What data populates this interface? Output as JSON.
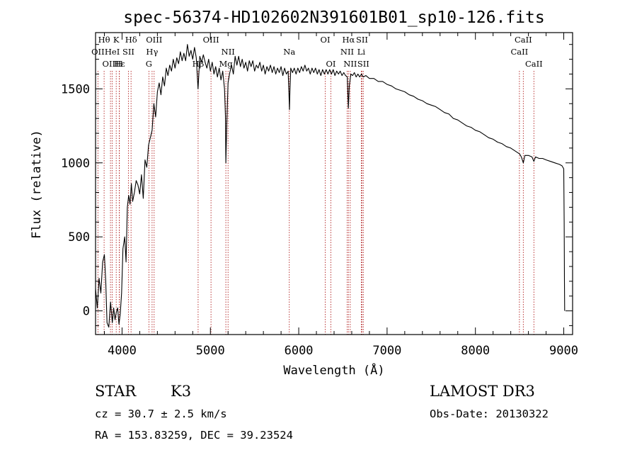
{
  "chart_data": {
    "type": "line",
    "title": "spec-56374-HD102602N391601B01_sp10-126.fits",
    "xlabel": "Wavelength (Å)",
    "ylabel": "Flux (relative)",
    "xlim": [
      3700,
      9100
    ],
    "ylim": [
      -160,
      1880
    ],
    "x_ticks": [
      4000,
      5000,
      6000,
      7000,
      8000,
      9000
    ],
    "y_ticks": [
      0,
      500,
      1000,
      1500
    ],
    "grid": false,
    "series": [
      {
        "color": "#000000",
        "points": [
          [
            3700,
            150
          ],
          [
            3720,
            20
          ],
          [
            3740,
            220
          ],
          [
            3760,
            120
          ],
          [
            3780,
            330
          ],
          [
            3800,
            380
          ],
          [
            3815,
            200
          ],
          [
            3830,
            -80
          ],
          [
            3850,
            -110
          ],
          [
            3870,
            60
          ],
          [
            3890,
            -80
          ],
          [
            3905,
            20
          ],
          [
            3920,
            -60
          ],
          [
            3935,
            -10
          ],
          [
            3950,
            20
          ],
          [
            3965,
            -90
          ],
          [
            3980,
            -20
          ],
          [
            3995,
            120
          ],
          [
            4010,
            420
          ],
          [
            4030,
            500
          ],
          [
            4045,
            330
          ],
          [
            4060,
            700
          ],
          [
            4075,
            780
          ],
          [
            4090,
            720
          ],
          [
            4105,
            860
          ],
          [
            4120,
            740
          ],
          [
            4140,
            800
          ],
          [
            4160,
            880
          ],
          [
            4180,
            850
          ],
          [
            4200,
            790
          ],
          [
            4220,
            920
          ],
          [
            4240,
            760
          ],
          [
            4260,
            1020
          ],
          [
            4280,
            970
          ],
          [
            4300,
            1120
          ],
          [
            4320,
            1170
          ],
          [
            4340,
            1220
          ],
          [
            4360,
            1400
          ],
          [
            4380,
            1310
          ],
          [
            4400,
            1480
          ],
          [
            4420,
            1540
          ],
          [
            4440,
            1460
          ],
          [
            4460,
            1580
          ],
          [
            4480,
            1520
          ],
          [
            4500,
            1640
          ],
          [
            4520,
            1590
          ],
          [
            4540,
            1660
          ],
          [
            4560,
            1620
          ],
          [
            4580,
            1700
          ],
          [
            4600,
            1640
          ],
          [
            4620,
            1710
          ],
          [
            4640,
            1670
          ],
          [
            4660,
            1750
          ],
          [
            4680,
            1690
          ],
          [
            4700,
            1740
          ],
          [
            4720,
            1690
          ],
          [
            4740,
            1800
          ],
          [
            4760,
            1720
          ],
          [
            4780,
            1760
          ],
          [
            4800,
            1700
          ],
          [
            4820,
            1780
          ],
          [
            4840,
            1710
          ],
          [
            4860,
            1500
          ],
          [
            4880,
            1720
          ],
          [
            4900,
            1680
          ],
          [
            4920,
            1730
          ],
          [
            4940,
            1680
          ],
          [
            4960,
            1640
          ],
          [
            4980,
            1700
          ],
          [
            5000,
            1620
          ],
          [
            5020,
            1680
          ],
          [
            5040,
            1600
          ],
          [
            5060,
            1650
          ],
          [
            5080,
            1580
          ],
          [
            5100,
            1640
          ],
          [
            5120,
            1560
          ],
          [
            5140,
            1620
          ],
          [
            5160,
            1500
          ],
          [
            5170,
            1320
          ],
          [
            5175,
            1000
          ],
          [
            5185,
            1260
          ],
          [
            5200,
            1540
          ],
          [
            5220,
            1610
          ],
          [
            5240,
            1660
          ],
          [
            5260,
            1600
          ],
          [
            5280,
            1720
          ],
          [
            5300,
            1660
          ],
          [
            5320,
            1720
          ],
          [
            5340,
            1650
          ],
          [
            5360,
            1700
          ],
          [
            5380,
            1640
          ],
          [
            5400,
            1680
          ],
          [
            5420,
            1620
          ],
          [
            5440,
            1690
          ],
          [
            5460,
            1650
          ],
          [
            5480,
            1690
          ],
          [
            5500,
            1620
          ],
          [
            5520,
            1660
          ],
          [
            5540,
            1640
          ],
          [
            5560,
            1680
          ],
          [
            5580,
            1620
          ],
          [
            5600,
            1660
          ],
          [
            5620,
            1600
          ],
          [
            5640,
            1650
          ],
          [
            5660,
            1620
          ],
          [
            5680,
            1660
          ],
          [
            5700,
            1610
          ],
          [
            5720,
            1650
          ],
          [
            5740,
            1600
          ],
          [
            5760,
            1640
          ],
          [
            5780,
            1610
          ],
          [
            5800,
            1650
          ],
          [
            5820,
            1590
          ],
          [
            5840,
            1640
          ],
          [
            5860,
            1600
          ],
          [
            5880,
            1620
          ],
          [
            5890,
            1460
          ],
          [
            5895,
            1360
          ],
          [
            5900,
            1480
          ],
          [
            5910,
            1640
          ],
          [
            5930,
            1610
          ],
          [
            5950,
            1640
          ],
          [
            5970,
            1600
          ],
          [
            5990,
            1640
          ],
          [
            6010,
            1610
          ],
          [
            6030,
            1650
          ],
          [
            6050,
            1620
          ],
          [
            6070,
            1660
          ],
          [
            6090,
            1620
          ],
          [
            6110,
            1640
          ],
          [
            6130,
            1600
          ],
          [
            6150,
            1640
          ],
          [
            6170,
            1610
          ],
          [
            6190,
            1640
          ],
          [
            6210,
            1600
          ],
          [
            6230,
            1630
          ],
          [
            6250,
            1590
          ],
          [
            6270,
            1630
          ],
          [
            6290,
            1600
          ],
          [
            6310,
            1630
          ],
          [
            6330,
            1600
          ],
          [
            6350,
            1630
          ],
          [
            6370,
            1600
          ],
          [
            6390,
            1630
          ],
          [
            6410,
            1590
          ],
          [
            6430,
            1620
          ],
          [
            6450,
            1600
          ],
          [
            6470,
            1620
          ],
          [
            6490,
            1590
          ],
          [
            6510,
            1610
          ],
          [
            6530,
            1590
          ],
          [
            6550,
            1580
          ],
          [
            6562,
            1370
          ],
          [
            6572,
            1520
          ],
          [
            6590,
            1600
          ],
          [
            6610,
            1590
          ],
          [
            6630,
            1610
          ],
          [
            6650,
            1580
          ],
          [
            6670,
            1600
          ],
          [
            6690,
            1580
          ],
          [
            6710,
            1600
          ],
          [
            6730,
            1580
          ],
          [
            6760,
            1590
          ],
          [
            6800,
            1570
          ],
          [
            6850,
            1570
          ],
          [
            6900,
            1550
          ],
          [
            6950,
            1550
          ],
          [
            7000,
            1530
          ],
          [
            7050,
            1520
          ],
          [
            7100,
            1500
          ],
          [
            7150,
            1490
          ],
          [
            7200,
            1480
          ],
          [
            7250,
            1460
          ],
          [
            7300,
            1450
          ],
          [
            7350,
            1430
          ],
          [
            7400,
            1420
          ],
          [
            7450,
            1400
          ],
          [
            7500,
            1390
          ],
          [
            7550,
            1380
          ],
          [
            7600,
            1360
          ],
          [
            7650,
            1340
          ],
          [
            7700,
            1330
          ],
          [
            7750,
            1300
          ],
          [
            7800,
            1290
          ],
          [
            7850,
            1270
          ],
          [
            7900,
            1250
          ],
          [
            7950,
            1240
          ],
          [
            8000,
            1220
          ],
          [
            8050,
            1210
          ],
          [
            8100,
            1190
          ],
          [
            8150,
            1170
          ],
          [
            8200,
            1160
          ],
          [
            8250,
            1140
          ],
          [
            8300,
            1130
          ],
          [
            8350,
            1110
          ],
          [
            8400,
            1100
          ],
          [
            8450,
            1080
          ],
          [
            8500,
            1060
          ],
          [
            8520,
            1040
          ],
          [
            8542,
            1000
          ],
          [
            8560,
            1050
          ],
          [
            8600,
            1050
          ],
          [
            8640,
            1040
          ],
          [
            8662,
            1010
          ],
          [
            8680,
            1040
          ],
          [
            8720,
            1030
          ],
          [
            8760,
            1030
          ],
          [
            8800,
            1020
          ],
          [
            8850,
            1010
          ],
          [
            8900,
            1000
          ],
          [
            8950,
            990
          ],
          [
            8980,
            980
          ],
          [
            9000,
            960
          ],
          [
            9005,
            600
          ],
          [
            9008,
            200
          ],
          [
            9010,
            0
          ]
        ]
      }
    ],
    "lines": [
      {
        "label": "Hθ",
        "x": 3797,
        "row": 0
      },
      {
        "label": "K",
        "x": 3934,
        "row": 0
      },
      {
        "label": "Hδ",
        "x": 4102,
        "row": 0
      },
      {
        "label": "OIII",
        "x": 4363,
        "row": 0
      },
      {
        "label": "OIII",
        "x": 5007,
        "row": 0
      },
      {
        "label": "OI",
        "x": 6300,
        "row": 0
      },
      {
        "label": "Hα",
        "x": 6563,
        "row": 0
      },
      {
        "label": "SII",
        "x": 6716,
        "row": 0
      },
      {
        "label": "CaII",
        "x": 8542,
        "row": 0
      },
      {
        "label": "OII",
        "x": 3727,
        "row": 1
      },
      {
        "label": "HeI",
        "x": 3889,
        "row": 1
      },
      {
        "label": "SII",
        "x": 4072,
        "row": 1
      },
      {
        "label": "Hγ",
        "x": 4340,
        "row": 1
      },
      {
        "label": "NII",
        "x": 5200,
        "row": 1
      },
      {
        "label": "Na",
        "x": 5893,
        "row": 1
      },
      {
        "label": "NII",
        "x": 6548,
        "row": 1
      },
      {
        "label": "Li",
        "x": 6708,
        "row": 1
      },
      {
        "label": "CaII",
        "x": 8498,
        "row": 1
      },
      {
        "label": "OIII",
        "x": 3869,
        "row": 2
      },
      {
        "label": "Hε",
        "x": 3970,
        "row": 2
      },
      {
        "label": "H",
        "x": 3968,
        "row": 2
      },
      {
        "label": "G",
        "x": 4304,
        "row": 2
      },
      {
        "label": "Hβ",
        "x": 4861,
        "row": 2
      },
      {
        "label": "Mg",
        "x": 5175,
        "row": 2
      },
      {
        "label": "OI",
        "x": 6364,
        "row": 2
      },
      {
        "label": "NII",
        "x": 6583,
        "row": 2
      },
      {
        "label": "SII",
        "x": 6731,
        "row": 2
      },
      {
        "label": "CaII",
        "x": 8662,
        "row": 2
      }
    ],
    "line_color": "#b22222"
  },
  "info": {
    "type_label": "STAR",
    "subclass": "K3",
    "survey": "LAMOST DR3",
    "redshift": "cz = 30.7 ± 2.5 km/s",
    "obs_date": "Obs-Date: 20130322",
    "coords": "RA = 153.83259, DEC =  39.23524"
  }
}
